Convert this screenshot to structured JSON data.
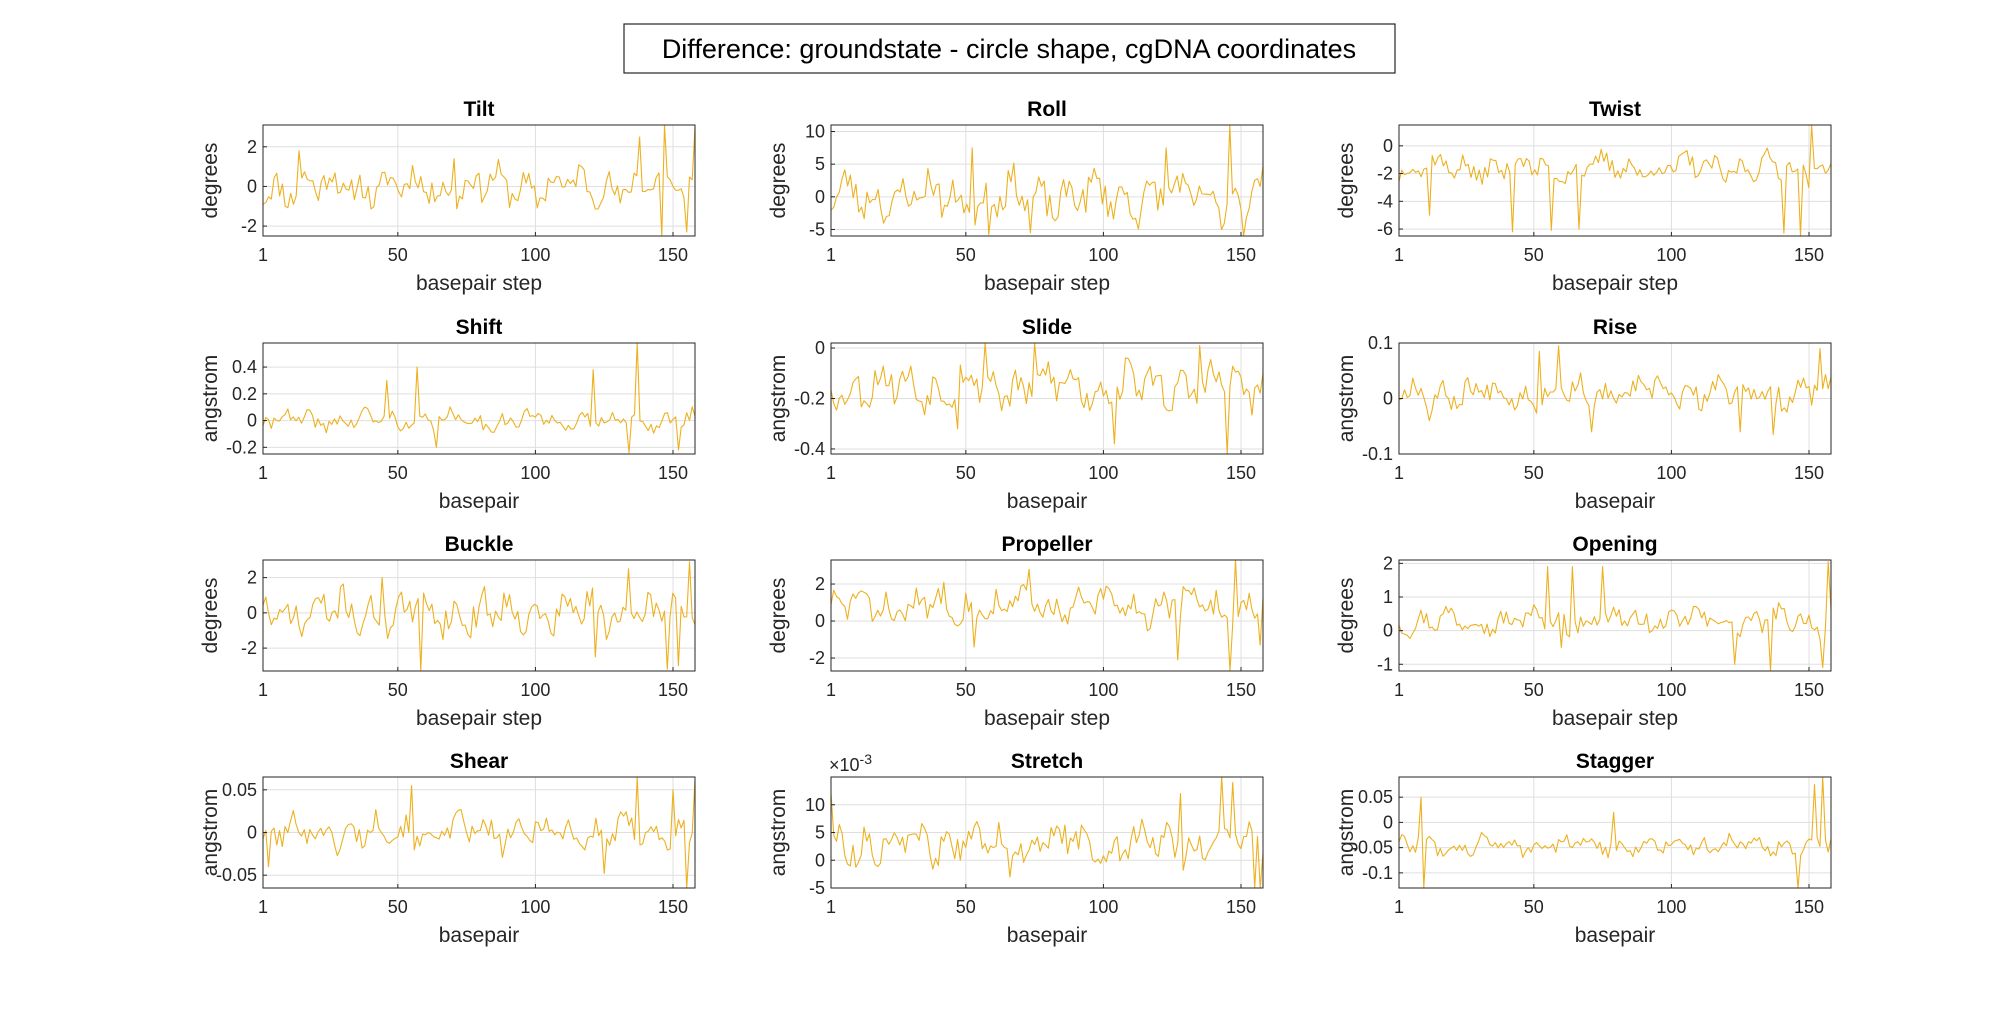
{
  "figure": {
    "title": "Difference: groundstate - circle shape, cgDNA coordinates",
    "line_color": "#EDB120"
  },
  "chart_data": [
    {
      "type": "line",
      "title": "Tilt",
      "xlabel": "basepair step",
      "ylabel": "degrees",
      "xlim": [
        1,
        158
      ],
      "ylim": [
        -2.5,
        3.1
      ],
      "xticks": [
        1,
        50,
        100,
        150
      ],
      "yticks": [
        -2,
        0,
        2
      ],
      "ytick_labels": [
        "-2",
        "0",
        "2"
      ],
      "grid": true,
      "n": 157,
      "seed": 11,
      "amp": 0.9,
      "extremes": [
        [
          145,
          -2.5
        ],
        [
          146,
          3.1
        ],
        [
          154,
          -2.3
        ],
        [
          158,
          3.0
        ],
        [
          137,
          2.5
        ],
        [
          14,
          1.8
        ],
        [
          70,
          1.4
        ]
      ]
    },
    {
      "type": "line",
      "title": "Roll",
      "xlabel": "basepair step",
      "ylabel": "degrees",
      "xlim": [
        1,
        158
      ],
      "ylim": [
        -6,
        11
      ],
      "xticks": [
        1,
        50,
        100,
        150
      ],
      "yticks": [
        -5,
        0,
        5,
        10
      ],
      "ytick_labels": [
        "-5",
        "0",
        "5",
        "10"
      ],
      "grid": true,
      "n": 157,
      "seed": 23,
      "amp": 3.2,
      "extremes": [
        [
          145,
          11
        ],
        [
          150,
          -6
        ],
        [
          58,
          -5.8
        ],
        [
          52,
          7.5
        ],
        [
          73,
          -5.5
        ],
        [
          122,
          7.5
        ],
        [
          142,
          -5
        ]
      ]
    },
    {
      "type": "line",
      "title": "Twist",
      "xlabel": "basepair step",
      "ylabel": "degrees",
      "xlim": [
        1,
        158
      ],
      "ylim": [
        -6.5,
        1.5
      ],
      "xticks": [
        1,
        50,
        100,
        150
      ],
      "yticks": [
        -6,
        -4,
        -2,
        0
      ],
      "ytick_labels": [
        "-6",
        "-4",
        "-2",
        "0"
      ],
      "grid": true,
      "n": 157,
      "seed": 37,
      "amp": 0.9,
      "offset": -1.6,
      "extremes": [
        [
          150,
          1.5
        ],
        [
          146,
          -6.5
        ],
        [
          42,
          -6.2
        ],
        [
          56,
          -6.1
        ],
        [
          66,
          -6.0
        ],
        [
          140,
          -6.3
        ],
        [
          12,
          -5
        ]
      ]
    },
    {
      "type": "line",
      "title": "Shift",
      "xlabel": "basepair",
      "ylabel": "angstrom",
      "xlim": [
        1,
        158
      ],
      "ylim": [
        -0.25,
        0.58
      ],
      "xticks": [
        1,
        50,
        100,
        150
      ],
      "yticks": [
        -0.2,
        0,
        0.2,
        0.4
      ],
      "ytick_labels": [
        "-0.2",
        "0",
        "0.2",
        "0.4"
      ],
      "grid": true,
      "n": 158,
      "seed": 41,
      "amp": 0.07,
      "extremes": [
        [
          137,
          0.58
        ],
        [
          57,
          0.4
        ],
        [
          121,
          0.38
        ],
        [
          64,
          -0.2
        ],
        [
          134,
          -0.24
        ],
        [
          152,
          -0.22
        ],
        [
          46,
          0.3
        ]
      ]
    },
    {
      "type": "line",
      "title": "Slide",
      "xlabel": "basepair",
      "ylabel": "angstrom",
      "xlim": [
        1,
        158
      ],
      "ylim": [
        -0.42,
        0.02
      ],
      "xticks": [
        1,
        50,
        100,
        150
      ],
      "yticks": [
        -0.4,
        -0.2,
        0
      ],
      "ytick_labels": [
        "-0.4",
        "-0.2",
        "0"
      ],
      "grid": true,
      "n": 158,
      "seed": 53,
      "amp": 0.08,
      "offset": -0.15,
      "extremes": [
        [
          145,
          -0.42
        ],
        [
          57,
          0.02
        ],
        [
          75,
          0.02
        ],
        [
          135,
          0.01
        ],
        [
          104,
          -0.38
        ],
        [
          47,
          -0.32
        ]
      ]
    },
    {
      "type": "line",
      "title": "Rise",
      "xlabel": "basepair",
      "ylabel": "angstrom",
      "xlim": [
        1,
        158
      ],
      "ylim": [
        -0.1,
        0.1
      ],
      "xticks": [
        1,
        50,
        100,
        150
      ],
      "yticks": [
        -0.1,
        0,
        0.1
      ],
      "ytick_labels": [
        "-0.1",
        "0",
        "0.1"
      ],
      "grid": true,
      "n": 158,
      "seed": 67,
      "amp": 0.025,
      "offset": 0.01,
      "extremes": [
        [
          59,
          0.095
        ],
        [
          52,
          0.085
        ],
        [
          154,
          0.09
        ],
        [
          71,
          -0.06
        ],
        [
          125,
          -0.06
        ],
        [
          137,
          -0.065
        ],
        [
          12,
          -0.04
        ]
      ]
    },
    {
      "type": "line",
      "title": "Buckle",
      "xlabel": "basepair step",
      "ylabel": "degrees",
      "xlim": [
        1,
        158
      ],
      "ylim": [
        -3.3,
        3
      ],
      "xticks": [
        1,
        50,
        100,
        150
      ],
      "yticks": [
        -2,
        0,
        2
      ],
      "ytick_labels": [
        "-2",
        "0",
        "2"
      ],
      "grid": true,
      "n": 157,
      "seed": 71,
      "amp": 1.1,
      "extremes": [
        [
          58,
          -3.3
        ],
        [
          147,
          -3.2
        ],
        [
          155,
          2.9
        ],
        [
          151,
          -3
        ],
        [
          133,
          2.5
        ],
        [
          121,
          -2.5
        ],
        [
          44,
          2.0
        ]
      ]
    },
    {
      "type": "line",
      "title": "Propeller",
      "xlabel": "basepair step",
      "ylabel": "degrees",
      "xlim": [
        1,
        158
      ],
      "ylim": [
        -2.7,
        3.3
      ],
      "xticks": [
        1,
        50,
        100,
        150
      ],
      "yticks": [
        -2,
        0,
        2
      ],
      "ytick_labels": [
        "-2",
        "0",
        "2"
      ],
      "grid": true,
      "n": 158,
      "seed": 83,
      "amp": 0.9,
      "offset": 0.8,
      "extremes": [
        [
          148,
          3.3
        ],
        [
          146,
          -2.7
        ],
        [
          127,
          -2.1
        ],
        [
          157,
          -1.3
        ],
        [
          73,
          2.8
        ],
        [
          53,
          -1.4
        ]
      ]
    },
    {
      "type": "line",
      "title": "Opening",
      "xlabel": "basepair step",
      "ylabel": "degrees",
      "xlim": [
        1,
        158
      ],
      "ylim": [
        -1.2,
        2.1
      ],
      "xticks": [
        1,
        50,
        100,
        150
      ],
      "yticks": [
        -1,
        0,
        1,
        2
      ],
      "ytick_labels": [
        "-1",
        "0",
        "1",
        "2"
      ],
      "grid": true,
      "n": 158,
      "seed": 97,
      "amp": 0.35,
      "offset": 0.3,
      "extremes": [
        [
          157,
          2.05
        ],
        [
          64,
          1.9
        ],
        [
          55,
          1.9
        ],
        [
          75,
          1.9
        ],
        [
          136,
          -1.2
        ],
        [
          155,
          -1.1
        ],
        [
          123,
          -1
        ],
        [
          60,
          -0.5
        ]
      ]
    },
    {
      "type": "line",
      "title": "Shear",
      "xlabel": "basepair",
      "ylabel": "angstrom",
      "xlim": [
        1,
        158
      ],
      "ylim": [
        -0.065,
        0.065
      ],
      "xticks": [
        1,
        50,
        100,
        150
      ],
      "yticks": [
        -0.05,
        0,
        0.05
      ],
      "ytick_labels": [
        "-0.05",
        "0",
        "0.05"
      ],
      "grid": true,
      "n": 158,
      "seed": 101,
      "amp": 0.018,
      "extremes": [
        [
          155,
          -0.065
        ],
        [
          137,
          0.065
        ],
        [
          158,
          0.062
        ],
        [
          55,
          0.055
        ],
        [
          150,
          0.05
        ],
        [
          125,
          -0.048
        ],
        [
          3,
          -0.04
        ]
      ]
    },
    {
      "type": "line",
      "title": "Stretch",
      "xlabel": "basepair",
      "ylabel": "angstrom",
      "xlim": [
        1,
        158
      ],
      "ylim": [
        -0.005,
        0.015
      ],
      "xticks": [
        1,
        50,
        100,
        150
      ],
      "yticks": [
        -0.005,
        0,
        0.005,
        0.01
      ],
      "ytick_labels": [
        "-5",
        "0",
        "5",
        "10"
      ],
      "ytick_exponent": "-3",
      "grid": true,
      "n": 158,
      "seed": 113,
      "amp": 0.0032,
      "offset": 0.003,
      "extremes": [
        [
          143,
          0.015
        ],
        [
          147,
          0.014
        ],
        [
          155,
          -0.005
        ],
        [
          157,
          -0.005
        ],
        [
          128,
          0.012
        ],
        [
          1,
          0.012
        ],
        [
          66,
          -0.003
        ]
      ]
    },
    {
      "type": "line",
      "title": "Stagger",
      "xlabel": "basepair",
      "ylabel": "angstrom",
      "xlim": [
        1,
        158
      ],
      "ylim": [
        -0.13,
        0.09
      ],
      "xticks": [
        1,
        50,
        100,
        150
      ],
      "yticks": [
        -0.1,
        -0.05,
        0,
        0.05
      ],
      "ytick_labels": [
        "-0.1",
        "-0.05",
        "0",
        "0.05"
      ],
      "grid": true,
      "n": 158,
      "seed": 127,
      "amp": 0.018,
      "offset": -0.045,
      "extremes": [
        [
          9,
          0.05
        ],
        [
          10,
          -0.13
        ],
        [
          146,
          -0.13
        ],
        [
          155,
          0.09
        ],
        [
          152,
          0.075
        ],
        [
          79,
          0.02
        ]
      ]
    }
  ]
}
